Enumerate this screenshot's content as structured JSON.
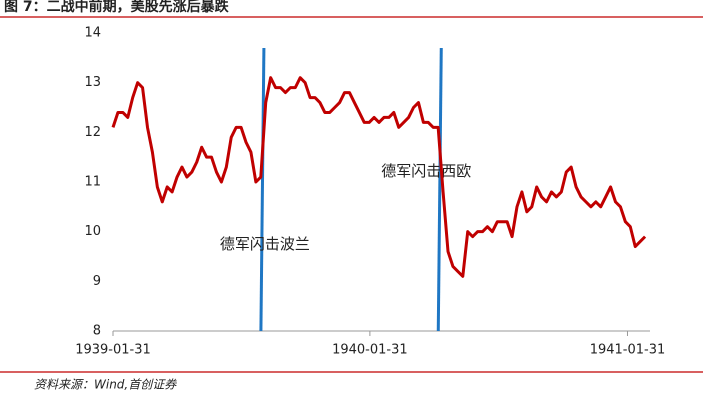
{
  "chart_data": {
    "type": "line",
    "title": "图 7：二战中前期，美股先涨后暴跌",
    "source": "资料来源：Wind,首创证券",
    "x": [
      "1939-01-31",
      "1939-02-07",
      "1939-02-14",
      "1939-02-21",
      "1939-02-28",
      "1939-03-07",
      "1939-03-14",
      "1939-03-21",
      "1939-03-28",
      "1939-04-04",
      "1939-04-11",
      "1939-04-18",
      "1939-04-25",
      "1939-05-02",
      "1939-05-09",
      "1939-05-16",
      "1939-05-23",
      "1939-05-30",
      "1939-06-06",
      "1939-06-13",
      "1939-06-20",
      "1939-06-27",
      "1939-07-04",
      "1939-07-11",
      "1939-07-18",
      "1939-07-25",
      "1939-08-01",
      "1939-08-08",
      "1939-08-15",
      "1939-08-22",
      "1939-08-29",
      "1939-09-05",
      "1939-09-12",
      "1939-09-19",
      "1939-09-26",
      "1939-10-03",
      "1939-10-10",
      "1939-10-17",
      "1939-10-24",
      "1939-10-31",
      "1939-11-07",
      "1939-11-14",
      "1939-11-21",
      "1939-11-28",
      "1939-12-05",
      "1939-12-12",
      "1939-12-19",
      "1939-12-26",
      "1940-01-02",
      "1940-01-09",
      "1940-01-16",
      "1940-01-23",
      "1940-01-30",
      "1940-02-06",
      "1940-02-13",
      "1940-02-20",
      "1940-02-27",
      "1940-03-05",
      "1940-03-12",
      "1940-03-19",
      "1940-03-26",
      "1940-04-02",
      "1940-04-09",
      "1940-04-16",
      "1940-04-23",
      "1940-04-30",
      "1940-05-07",
      "1940-05-14",
      "1940-05-21",
      "1940-05-28",
      "1940-06-04",
      "1940-06-11",
      "1940-06-18",
      "1940-06-25",
      "1940-07-02",
      "1940-07-09",
      "1940-07-16",
      "1940-07-23",
      "1940-07-30",
      "1940-08-06",
      "1940-08-13",
      "1940-08-20",
      "1940-08-27",
      "1940-09-03",
      "1940-09-10",
      "1940-09-17",
      "1940-09-24",
      "1940-10-01",
      "1940-10-08",
      "1940-10-15",
      "1940-10-22",
      "1940-10-29",
      "1940-11-05",
      "1940-11-12",
      "1940-11-19",
      "1940-11-26",
      "1940-12-03",
      "1940-12-10",
      "1940-12-17",
      "1940-12-24",
      "1940-12-31",
      "1941-01-07",
      "1941-01-14",
      "1941-01-21",
      "1941-01-28",
      "1941-02-04",
      "1941-02-11",
      "1941-02-18",
      "1941-02-25"
    ],
    "series": [
      {
        "color": "#c00000",
        "values": [
          12.1,
          12.4,
          12.4,
          12.3,
          12.7,
          13.0,
          12.9,
          12.1,
          11.6,
          10.9,
          10.6,
          10.9,
          10.8,
          11.1,
          11.3,
          11.1,
          11.2,
          11.4,
          11.7,
          11.5,
          11.5,
          11.2,
          11.0,
          11.3,
          11.9,
          12.1,
          12.1,
          11.8,
          11.6,
          11.0,
          11.1,
          12.6,
          13.1,
          12.9,
          12.9,
          12.8,
          12.9,
          12.9,
          13.1,
          13.0,
          12.7,
          12.7,
          12.6,
          12.4,
          12.4,
          12.5,
          12.6,
          12.8,
          12.8,
          12.6,
          12.4,
          12.2,
          12.2,
          12.3,
          12.2,
          12.3,
          12.3,
          12.4,
          12.1,
          12.2,
          12.3,
          12.5,
          12.6,
          12.2,
          12.2,
          12.1,
          12.1,
          10.8,
          9.6,
          9.3,
          9.2,
          9.1,
          10.0,
          9.9,
          10.0,
          10.0,
          10.1,
          10.0,
          10.2,
          10.2,
          10.2,
          9.9,
          10.5,
          10.8,
          10.4,
          10.5,
          10.9,
          10.7,
          10.6,
          10.8,
          10.7,
          10.8,
          11.2,
          11.3,
          10.9,
          10.7,
          10.6,
          10.5,
          10.6,
          10.5,
          10.7,
          10.9,
          10.6,
          10.5,
          10.2,
          10.1,
          9.7,
          9.8,
          9.9
        ]
      }
    ],
    "xlim": [
      "1939-01-31",
      "1941-03-04"
    ],
    "xticks": [
      "1939-01-31",
      "1940-01-31",
      "1941-01-31"
    ],
    "ylim": [
      8,
      14
    ],
    "yticks": [
      8,
      9,
      10,
      11,
      12,
      13,
      14
    ],
    "grid": false,
    "events": [
      {
        "x": "1939-09-01",
        "label": "德军闪击波兰",
        "color": "#1f77c4"
      },
      {
        "x": "1940-05-10",
        "label": "德军闪击西欧",
        "color": "#1f77c4"
      }
    ]
  }
}
